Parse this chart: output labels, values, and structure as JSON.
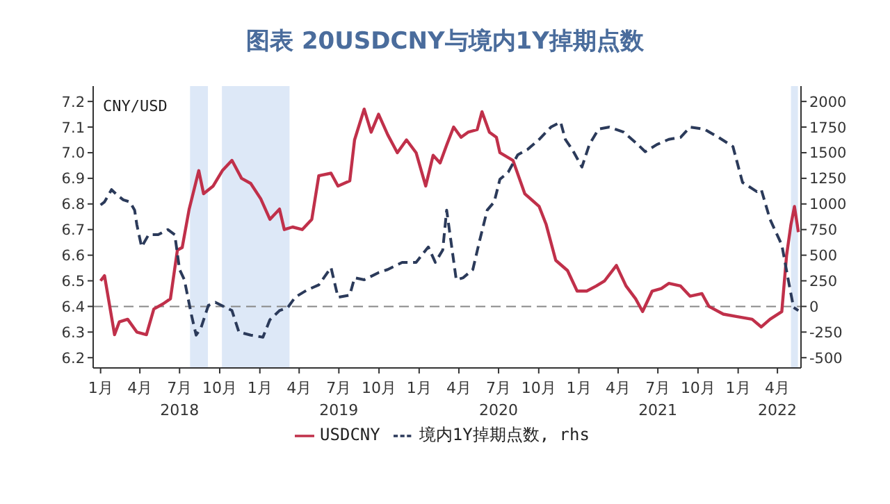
{
  "chart_data": {
    "type": "line",
    "title": "图表 20USDCNY与境内1Y掉期点数",
    "ylabel": "CNY/USD",
    "xlim": [
      "2017-12-15",
      "2022-05-25"
    ],
    "xticks": [
      {
        "value": "2018-01-01",
        "label": "1月"
      },
      {
        "value": "2018-04-01",
        "label": "4月"
      },
      {
        "value": "2018-07-01",
        "label": "7月\n2018"
      },
      {
        "value": "2018-10-01",
        "label": "10月"
      },
      {
        "value": "2019-01-01",
        "label": "1月"
      },
      {
        "value": "2019-04-01",
        "label": "4月"
      },
      {
        "value": "2019-07-01",
        "label": "7月\n2019"
      },
      {
        "value": "2019-10-01",
        "label": "10月"
      },
      {
        "value": "2020-01-01",
        "label": "1月"
      },
      {
        "value": "2020-04-01",
        "label": "4月"
      },
      {
        "value": "2020-07-01",
        "label": "7月\n2020"
      },
      {
        "value": "2020-10-01",
        "label": "10月"
      },
      {
        "value": "2021-01-01",
        "label": "1月"
      },
      {
        "value": "2021-04-01",
        "label": "4月"
      },
      {
        "value": "2021-07-01",
        "label": "7月\n2021"
      },
      {
        "value": "2021-10-01",
        "label": "10月"
      },
      {
        "value": "2022-01-01",
        "label": "1月"
      },
      {
        "value": "2022-04-01",
        "label": "4月\n2022"
      }
    ],
    "ylim": [
      6.16,
      7.26
    ],
    "yticks": [
      6.2,
      6.3,
      6.4,
      6.5,
      6.6,
      6.7,
      6.8,
      6.9,
      {
        "value": 7,
        "label": "7.0"
      },
      7.1,
      7.2
    ],
    "y2lim": [
      -600,
      2150
    ],
    "y2ticks": [
      -500,
      -250,
      0,
      250,
      500,
      750,
      1000,
      1250,
      1500,
      1750,
      2000
    ],
    "legend": "bottom",
    "marker": "none",
    "ref_lines": [
      {
        "axis": "y",
        "value": 6.4,
        "color": "#888888",
        "line_style": "dashed"
      }
    ],
    "bands": [
      {
        "axis": "x",
        "from": "2018-07-25",
        "to": "2018-09-04",
        "color": "#dde8f7"
      },
      {
        "axis": "x",
        "from": "2018-10-06",
        "to": "2019-03-10",
        "color": "#dde8f7"
      },
      {
        "axis": "x",
        "from": "2022-05-02",
        "to": "2022-05-18",
        "color": "#dde8f7"
      }
    ],
    "series": [
      {
        "name": "USDCNY",
        "color": "#c0304a",
        "line_style": "solid",
        "x": [
          "2018-01-01",
          "2018-01-10",
          "2018-01-21",
          "2018-02-02",
          "2018-02-13",
          "2018-03-04",
          "2018-03-25",
          "2018-04-16",
          "2018-05-03",
          "2018-05-24",
          "2018-06-10",
          "2018-06-26",
          "2018-07-07",
          "2018-07-23",
          "2018-08-14",
          "2018-08-25",
          "2018-09-16",
          "2018-10-07",
          "2018-10-29",
          "2018-11-20",
          "2018-12-11",
          "2019-01-03",
          "2019-01-24",
          "2019-02-15",
          "2019-02-26",
          "2019-03-17",
          "2019-04-08",
          "2019-04-30",
          "2019-05-16",
          "2019-06-13",
          "2019-06-29",
          "2019-07-26",
          "2019-08-06",
          "2019-08-28",
          "2019-09-13",
          "2019-09-30",
          "2019-10-21",
          "2019-11-12",
          "2019-12-03",
          "2019-12-25",
          "2020-01-16",
          "2020-02-02",
          "2020-02-18",
          "2020-03-04",
          "2020-03-20",
          "2020-04-06",
          "2020-04-22",
          "2020-05-13",
          "2020-05-24",
          "2020-06-10",
          "2020-06-26",
          "2020-07-04",
          "2020-08-03",
          "2020-08-30",
          "2020-10-02",
          "2020-10-18",
          "2020-11-09",
          "2020-12-06",
          "2020-12-28",
          "2021-01-19",
          "2021-02-10",
          "2021-03-01",
          "2021-03-28",
          "2021-04-19",
          "2021-05-11",
          "2021-05-27",
          "2021-06-18",
          "2021-07-09",
          "2021-07-26",
          "2021-08-22",
          "2021-09-13",
          "2021-10-10",
          "2021-10-26",
          "2021-11-28",
          "2021-12-30",
          "2022-02-02",
          "2022-02-23",
          "2022-03-15",
          "2022-04-11",
          "2022-04-22",
          "2022-05-02",
          "2022-05-10",
          "2022-05-19"
        ],
        "values": [
          6.5,
          6.52,
          6.41,
          6.29,
          6.34,
          6.35,
          6.3,
          6.29,
          6.39,
          6.41,
          6.43,
          6.62,
          6.63,
          6.78,
          6.93,
          6.84,
          6.87,
          6.93,
          6.97,
          6.9,
          6.88,
          6.82,
          6.74,
          6.78,
          6.7,
          6.71,
          6.7,
          6.74,
          6.91,
          6.92,
          6.87,
          6.89,
          7.05,
          7.17,
          7.08,
          7.15,
          7.07,
          7.0,
          7.05,
          7.0,
          6.87,
          6.99,
          6.96,
          7.03,
          7.1,
          7.06,
          7.08,
          7.09,
          7.16,
          7.08,
          7.06,
          7.0,
          6.97,
          6.84,
          6.79,
          6.72,
          6.58,
          6.54,
          6.46,
          6.46,
          6.48,
          6.5,
          6.56,
          6.48,
          6.43,
          6.38,
          6.46,
          6.47,
          6.49,
          6.48,
          6.44,
          6.45,
          6.4,
          6.37,
          6.36,
          6.35,
          6.32,
          6.35,
          6.38,
          6.6,
          6.72,
          6.79,
          6.69
        ]
      },
      {
        "name": "境内1Y掉期点数, rhs",
        "color": "#2b3a5a",
        "line_style": "dashed",
        "axis": "y2",
        "x": [
          "2018-01-01",
          "2018-01-10",
          "2018-01-26",
          "2018-02-07",
          "2018-02-22",
          "2018-03-09",
          "2018-03-20",
          "2018-03-25",
          "2018-04-05",
          "2018-04-21",
          "2018-05-13",
          "2018-06-04",
          "2018-06-20",
          "2018-07-01",
          "2018-07-12",
          "2018-07-28",
          "2018-08-08",
          "2018-08-19",
          "2018-09-05",
          "2018-09-21",
          "2018-10-29",
          "2018-11-14",
          "2018-12-11",
          "2019-01-08",
          "2019-01-24",
          "2019-02-15",
          "2019-03-06",
          "2019-03-23",
          "2019-04-19",
          "2019-05-16",
          "2019-06-13",
          "2019-06-29",
          "2019-07-26",
          "2019-08-06",
          "2019-08-28",
          "2019-09-30",
          "2019-10-21",
          "2019-11-23",
          "2019-12-25",
          "2020-01-22",
          "2020-02-07",
          "2020-02-24",
          "2020-03-04",
          "2020-03-15",
          "2020-03-26",
          "2020-04-11",
          "2020-05-03",
          "2020-05-19",
          "2020-06-05",
          "2020-06-21",
          "2020-07-04",
          "2020-07-23",
          "2020-08-14",
          "2020-09-05",
          "2020-10-02",
          "2020-10-29",
          "2020-11-20",
          "2020-12-01",
          "2020-12-17",
          "2021-01-08",
          "2021-01-25",
          "2021-02-15",
          "2021-03-12",
          "2021-04-14",
          "2021-05-16",
          "2021-06-02",
          "2021-06-29",
          "2021-07-26",
          "2021-08-22",
          "2021-09-13",
          "2021-10-15",
          "2021-11-17",
          "2021-12-20",
          "2022-01-11",
          "2022-02-13",
          "2022-02-23",
          "2022-03-15",
          "2022-04-11",
          "2022-04-28",
          "2022-05-08",
          "2022-05-19"
        ],
        "values": [
          990,
          1020,
          1140,
          1090,
          1040,
          1020,
          940,
          800,
          580,
          700,
          700,
          750,
          700,
          360,
          260,
          -80,
          -280,
          -210,
          10,
          40,
          -40,
          -250,
          -280,
          -300,
          -130,
          -40,
          -10,
          90,
          160,
          210,
          380,
          90,
          110,
          280,
          260,
          330,
          360,
          430,
          430,
          580,
          430,
          550,
          940,
          600,
          260,
          280,
          360,
          650,
          940,
          1020,
          1240,
          1310,
          1480,
          1530,
          1630,
          1750,
          1800,
          1630,
          1530,
          1360,
          1580,
          1730,
          1750,
          1700,
          1580,
          1510,
          1580,
          1630,
          1650,
          1750,
          1730,
          1650,
          1560,
          1210,
          1120,
          1140,
          850,
          600,
          210,
          -10,
          -40
        ]
      }
    ]
  }
}
